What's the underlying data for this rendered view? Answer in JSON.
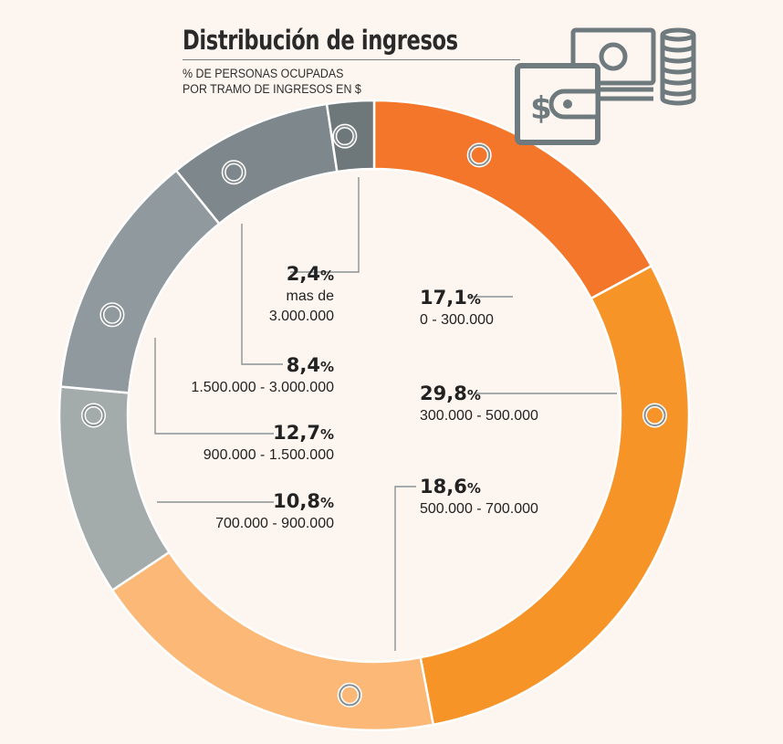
{
  "header": {
    "title": "Distribución de ingresos",
    "subtitle_line1": "% DE PERSONAS OCUPADAS",
    "subtitle_line2": "POR TRAMO DE INGRESOS EN $"
  },
  "icon": {
    "name": "money-wallet-coins-icon",
    "color": "#6f7a7e"
  },
  "chart_data": {
    "type": "pie",
    "variant": "donut",
    "unit": "%",
    "categories": [
      "0 - 300.000",
      "300.000 - 500.000",
      "500.000 - 700.000",
      "700.000 - 900.000",
      "900.000 - 1.500.000",
      "1.500.000 - 3.000.000",
      "mas de 3.000.000"
    ],
    "values": [
      17.1,
      29.8,
      18.6,
      10.8,
      12.7,
      8.4,
      2.4
    ],
    "value_labels": [
      "17,1",
      "29,8",
      "18,6",
      "10,8",
      "12,7",
      "8,4",
      "2,4"
    ],
    "colors": [
      "#f4762a",
      "#f79428",
      "#fbb877",
      "#a4acab",
      "#8f999e",
      "#7e888c",
      "#6e777a"
    ],
    "legend": "none"
  }
}
